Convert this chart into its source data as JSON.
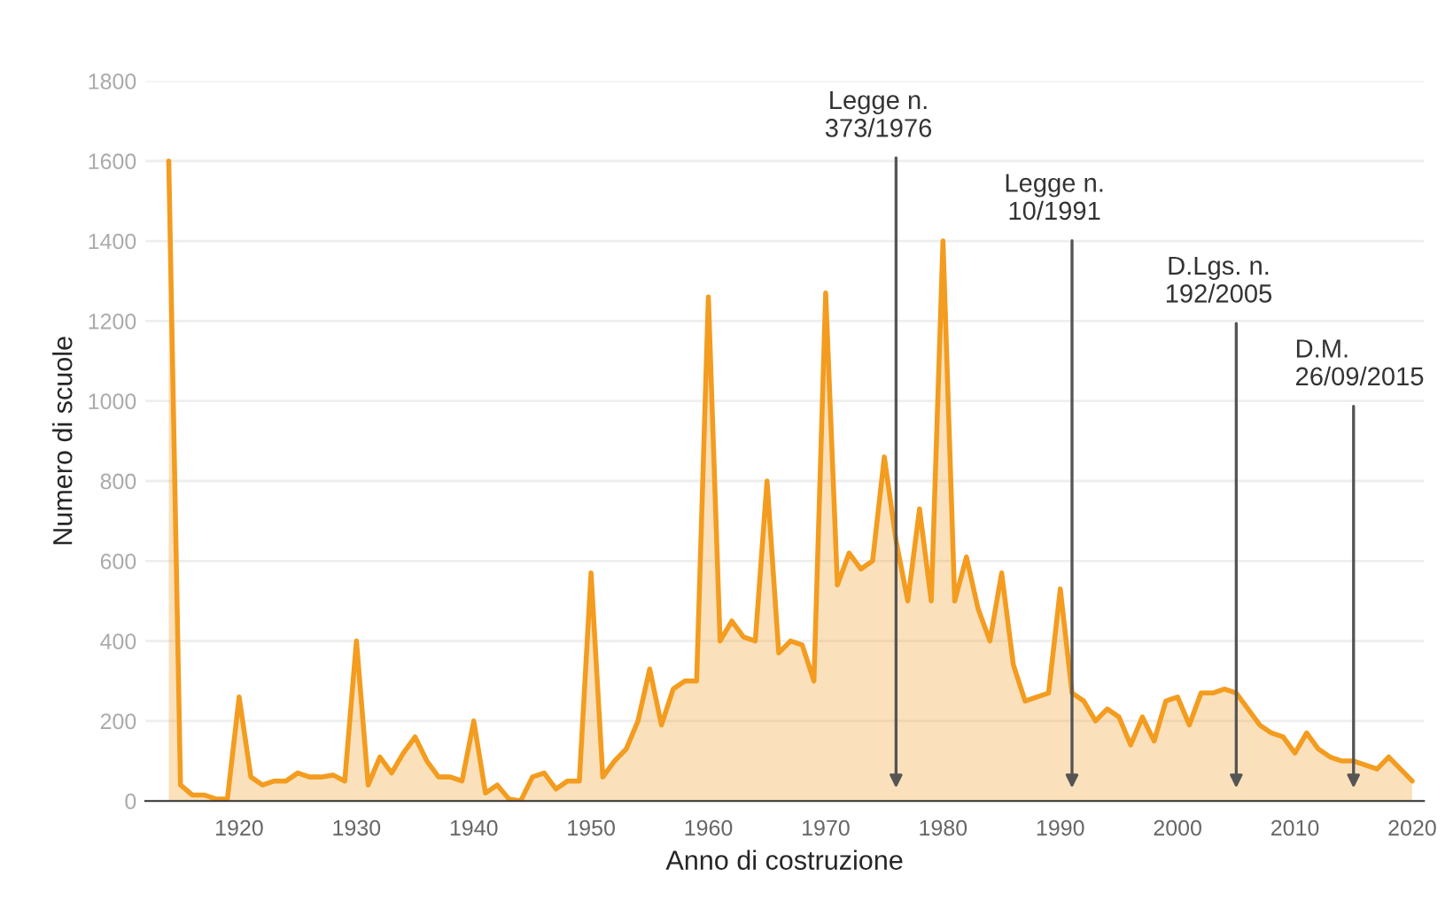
{
  "chart_data": {
    "type": "area",
    "xlabel": "Anno di costruzione",
    "ylabel": "Numero di scuole",
    "x": [
      1914,
      1915,
      1916,
      1917,
      1918,
      1919,
      1920,
      1921,
      1922,
      1923,
      1924,
      1925,
      1926,
      1927,
      1928,
      1929,
      1930,
      1931,
      1932,
      1933,
      1934,
      1935,
      1936,
      1937,
      1938,
      1939,
      1940,
      1941,
      1942,
      1943,
      1944,
      1945,
      1946,
      1947,
      1948,
      1949,
      1950,
      1951,
      1952,
      1953,
      1954,
      1955,
      1956,
      1957,
      1958,
      1959,
      1960,
      1961,
      1962,
      1963,
      1964,
      1965,
      1966,
      1967,
      1968,
      1969,
      1970,
      1971,
      1972,
      1973,
      1974,
      1975,
      1976,
      1977,
      1978,
      1979,
      1980,
      1981,
      1982,
      1983,
      1984,
      1985,
      1986,
      1987,
      1988,
      1989,
      1990,
      1991,
      1992,
      1993,
      1994,
      1995,
      1996,
      1997,
      1998,
      1999,
      2000,
      2001,
      2002,
      2003,
      2004,
      2005,
      2006,
      2007,
      2008,
      2009,
      2010,
      2011,
      2012,
      2013,
      2014,
      2015,
      2016,
      2017,
      2018,
      2019,
      2020
    ],
    "series": [
      {
        "color": "#f39c1f",
        "values": [
          1600,
          40,
          15,
          15,
          5,
          5,
          260,
          60,
          40,
          50,
          50,
          70,
          60,
          60,
          65,
          50,
          400,
          40,
          110,
          70,
          120,
          160,
          100,
          60,
          60,
          50,
          200,
          20,
          40,
          5,
          0,
          60,
          70,
          30,
          50,
          50,
          570,
          60,
          100,
          130,
          200,
          330,
          190,
          280,
          300,
          300,
          1260,
          400,
          450,
          410,
          400,
          800,
          370,
          400,
          390,
          300,
          1270,
          540,
          620,
          580,
          600,
          860,
          650,
          500,
          730,
          500,
          1400,
          500,
          610,
          480,
          400,
          570,
          340,
          250,
          260,
          270,
          530,
          270,
          250,
          200,
          230,
          210,
          140,
          210,
          150,
          250,
          260,
          190,
          270,
          270,
          280,
          270,
          230,
          190,
          170,
          160,
          120,
          170,
          130,
          110,
          100,
          100,
          90,
          80,
          110,
          80,
          50
        ]
      }
    ],
    "xlim": [
      1912,
      2021
    ],
    "xticks": [
      1920,
      1930,
      1940,
      1950,
      1960,
      1970,
      1980,
      1990,
      2000,
      2010,
      2020
    ],
    "ylim": [
      0,
      1800
    ],
    "yticks": [
      0,
      200,
      400,
      600,
      800,
      1000,
      1200,
      1400,
      1600,
      1800
    ],
    "grid": "y",
    "annotations": [
      {
        "text": "Legge n.\n373/1976",
        "x": 1976,
        "y": 20
      },
      {
        "text": "Legge n.\n10/1991",
        "x": 1991,
        "y": 20
      },
      {
        "text": "D.Lgs. n.\n192/2005",
        "x": 2005,
        "y": 20
      },
      {
        "text": "D.M.\n26/09/2015",
        "x": 2015,
        "y": 20
      }
    ]
  }
}
